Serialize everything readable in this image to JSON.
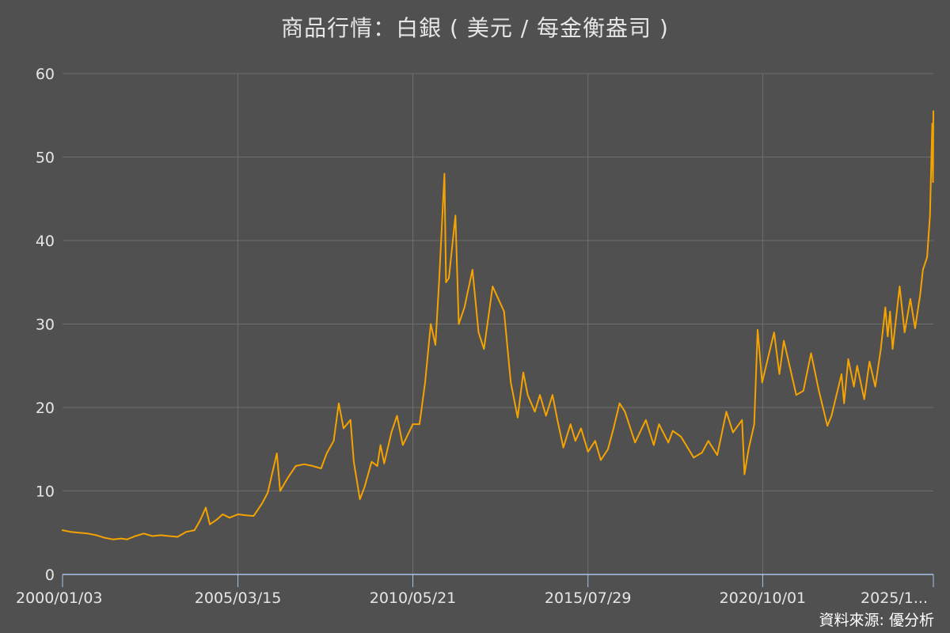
{
  "chart_data": {
    "type": "line",
    "title": "商品行情：白銀 ( 美元 / 每金衡盎司 )",
    "xlabel": "",
    "ylabel": "",
    "x_tick_labels": [
      "2000/01/03",
      "2005/03/15",
      "2010/05/21",
      "2015/07/29",
      "2020/10/01",
      "2025/1..."
    ],
    "x_tick_dates": [
      "2000-01-03",
      "2005-03-15",
      "2010-05-21",
      "2015-07-29",
      "2020-10-01",
      "2025-10-22"
    ],
    "xlim": [
      "2000-01-03",
      "2025-10-22"
    ],
    "y_ticks": [
      0,
      10,
      20,
      30,
      40,
      50,
      60
    ],
    "ylim": [
      0,
      60
    ],
    "grid": true,
    "colors": {
      "background": "#505050",
      "grid": "#6e6e6e",
      "axis": "#a9c4ec",
      "series": "#f5a300"
    },
    "series": [
      {
        "points": [
          [
            "2000-01-03",
            5.3
          ],
          [
            "2000-04-01",
            5.1
          ],
          [
            "2000-07-01",
            5.0
          ],
          [
            "2000-10-01",
            4.9
          ],
          [
            "2001-01-01",
            4.7
          ],
          [
            "2001-04-01",
            4.4
          ],
          [
            "2001-07-01",
            4.2
          ],
          [
            "2001-10-01",
            4.3
          ],
          [
            "2001-12-01",
            4.2
          ],
          [
            "2002-03-01",
            4.6
          ],
          [
            "2002-06-01",
            4.9
          ],
          [
            "2002-09-01",
            4.6
          ],
          [
            "2002-12-01",
            4.7
          ],
          [
            "2003-03-01",
            4.6
          ],
          [
            "2003-06-01",
            4.5
          ],
          [
            "2003-09-01",
            5.1
          ],
          [
            "2003-12-01",
            5.3
          ],
          [
            "2004-02-01",
            6.5
          ],
          [
            "2004-04-01",
            8.0
          ],
          [
            "2004-05-15",
            6.0
          ],
          [
            "2004-08-01",
            6.6
          ],
          [
            "2004-10-01",
            7.2
          ],
          [
            "2004-12-15",
            6.8
          ],
          [
            "2005-03-15",
            7.2
          ],
          [
            "2005-06-01",
            7.1
          ],
          [
            "2005-09-01",
            7.0
          ],
          [
            "2005-12-01",
            8.5
          ],
          [
            "2006-02-01",
            9.8
          ],
          [
            "2006-05-10",
            14.5
          ],
          [
            "2006-06-15",
            10.0
          ],
          [
            "2006-09-01",
            11.5
          ],
          [
            "2006-12-01",
            13.0
          ],
          [
            "2007-03-01",
            13.2
          ],
          [
            "2007-06-01",
            13.0
          ],
          [
            "2007-09-01",
            12.7
          ],
          [
            "2007-11-01",
            14.5
          ],
          [
            "2008-01-15",
            16.0
          ],
          [
            "2008-03-10",
            20.5
          ],
          [
            "2008-05-01",
            17.5
          ],
          [
            "2008-07-15",
            18.5
          ],
          [
            "2008-08-20",
            13.5
          ],
          [
            "2008-10-25",
            9.0
          ],
          [
            "2008-12-15",
            10.5
          ],
          [
            "2009-03-01",
            13.5
          ],
          [
            "2009-05-01",
            13.0
          ],
          [
            "2009-06-05",
            15.5
          ],
          [
            "2009-07-15",
            13.3
          ],
          [
            "2009-10-01",
            17.0
          ],
          [
            "2009-12-01",
            19.0
          ],
          [
            "2010-02-01",
            15.5
          ],
          [
            "2010-05-21",
            18.0
          ],
          [
            "2010-08-01",
            18.0
          ],
          [
            "2010-10-01",
            23.0
          ],
          [
            "2010-12-01",
            30.0
          ],
          [
            "2011-01-20",
            27.5
          ],
          [
            "2011-03-01",
            35.0
          ],
          [
            "2011-04-28",
            48.0
          ],
          [
            "2011-05-15",
            35.0
          ],
          [
            "2011-06-15",
            35.5
          ],
          [
            "2011-08-25",
            43.0
          ],
          [
            "2011-09-30",
            30.0
          ],
          [
            "2011-12-01",
            32.0
          ],
          [
            "2012-02-25",
            36.5
          ],
          [
            "2012-05-01",
            29.0
          ],
          [
            "2012-06-28",
            27.0
          ],
          [
            "2012-10-01",
            34.5
          ],
          [
            "2012-12-01",
            33.0
          ],
          [
            "2013-02-01",
            31.5
          ],
          [
            "2013-04-15",
            23.0
          ],
          [
            "2013-06-28",
            18.8
          ],
          [
            "2013-08-28",
            24.2
          ],
          [
            "2013-10-15",
            21.5
          ],
          [
            "2013-12-31",
            19.5
          ],
          [
            "2014-02-24",
            21.5
          ],
          [
            "2014-05-01",
            19.0
          ],
          [
            "2014-07-10",
            21.5
          ],
          [
            "2014-09-01",
            18.5
          ],
          [
            "2014-11-05",
            15.2
          ],
          [
            "2015-01-22",
            18.0
          ],
          [
            "2015-03-15",
            16.0
          ],
          [
            "2015-05-15",
            17.5
          ],
          [
            "2015-07-29",
            14.7
          ],
          [
            "2015-10-15",
            16.0
          ],
          [
            "2015-12-15",
            13.7
          ],
          [
            "2016-03-01",
            15.0
          ],
          [
            "2016-05-01",
            17.5
          ],
          [
            "2016-07-05",
            20.5
          ],
          [
            "2016-09-01",
            19.5
          ],
          [
            "2016-12-20",
            15.8
          ],
          [
            "2017-04-15",
            18.5
          ],
          [
            "2017-07-10",
            15.5
          ],
          [
            "2017-09-05",
            18.0
          ],
          [
            "2017-12-15",
            15.8
          ],
          [
            "2018-02-01",
            17.2
          ],
          [
            "2018-05-01",
            16.5
          ],
          [
            "2018-09-15",
            14.0
          ],
          [
            "2018-12-15",
            14.6
          ],
          [
            "2019-02-20",
            16.0
          ],
          [
            "2019-05-28",
            14.3
          ],
          [
            "2019-09-04",
            19.5
          ],
          [
            "2019-11-15",
            17.0
          ],
          [
            "2020-02-20",
            18.5
          ],
          [
            "2020-03-18",
            12.0
          ],
          [
            "2020-05-01",
            15.0
          ],
          [
            "2020-07-01",
            18.0
          ],
          [
            "2020-08-07",
            29.3
          ],
          [
            "2020-09-25",
            23.0
          ],
          [
            "2021-02-01",
            29.0
          ],
          [
            "2021-03-31",
            24.0
          ],
          [
            "2021-05-18",
            28.0
          ],
          [
            "2021-09-29",
            21.5
          ],
          [
            "2021-12-15",
            22.0
          ],
          [
            "2022-03-08",
            26.5
          ],
          [
            "2022-06-01",
            22.0
          ],
          [
            "2022-09-01",
            17.8
          ],
          [
            "2022-10-15",
            19.0
          ],
          [
            "2023-02-01",
            24.0
          ],
          [
            "2023-03-01",
            20.5
          ],
          [
            "2023-04-15",
            25.8
          ],
          [
            "2023-06-15",
            22.5
          ],
          [
            "2023-07-20",
            25.0
          ],
          [
            "2023-10-05",
            21.0
          ],
          [
            "2023-12-01",
            25.5
          ],
          [
            "2024-02-01",
            22.5
          ],
          [
            "2024-04-01",
            27.0
          ],
          [
            "2024-05-20",
            32.0
          ],
          [
            "2024-06-15",
            28.5
          ],
          [
            "2024-07-10",
            31.5
          ],
          [
            "2024-08-07",
            27.0
          ],
          [
            "2024-10-22",
            34.5
          ],
          [
            "2024-12-15",
            29.0
          ],
          [
            "2025-02-15",
            33.0
          ],
          [
            "2025-04-07",
            29.5
          ],
          [
            "2025-06-01",
            33.5
          ],
          [
            "2025-07-01",
            36.5
          ],
          [
            "2025-08-15",
            38.0
          ],
          [
            "2025-09-15",
            43.0
          ],
          [
            "2025-10-10",
            54.0
          ],
          [
            "2025-10-18",
            47.0
          ],
          [
            "2025-10-22",
            55.5
          ]
        ]
      }
    ]
  },
  "footer": {
    "source": "資料來源: 優分析"
  }
}
